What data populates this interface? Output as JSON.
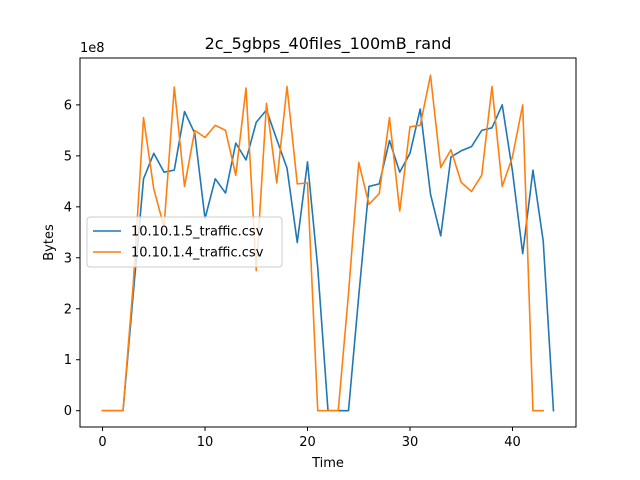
{
  "chart_data": {
    "type": "line",
    "title": "2c_5gbps_40files_100mB_rand",
    "xlabel": "Time",
    "ylabel": "Bytes",
    "y_offset_label": "1e8",
    "xlim": [
      -2.2,
      46.2
    ],
    "ylim": [
      -0.32,
      6.92
    ],
    "y_unit_scale": 100000000,
    "xticks": [
      0,
      10,
      20,
      30,
      40
    ],
    "yticks": [
      0,
      1,
      2,
      3,
      4,
      5,
      6
    ],
    "grid": false,
    "legend": "center-left",
    "series": [
      {
        "name": "10.10.1.5_traffic.csv",
        "color": "#1f77b4",
        "x": [
          0,
          1,
          2,
          3,
          4,
          5,
          6,
          7,
          8,
          9,
          10,
          11,
          12,
          13,
          14,
          15,
          16,
          17,
          18,
          19,
          20,
          21,
          22,
          23,
          24,
          25,
          26,
          27,
          28,
          29,
          30,
          31,
          32,
          33,
          34,
          35,
          36,
          37,
          38,
          39,
          40,
          41,
          42,
          43,
          44
        ],
        "values": [
          0,
          0,
          0,
          2.3,
          4.55,
          5.05,
          4.68,
          4.72,
          5.87,
          5.44,
          3.77,
          4.55,
          4.27,
          5.25,
          4.92,
          5.66,
          5.9,
          5.32,
          4.76,
          3.3,
          4.88,
          2.8,
          0,
          0,
          0,
          2.25,
          4.4,
          4.45,
          5.3,
          4.68,
          5.05,
          5.92,
          4.25,
          3.43,
          4.98,
          5.1,
          5.18,
          5.5,
          5.55,
          6.0,
          4.7,
          3.08,
          4.72,
          3.33,
          0
        ]
      },
      {
        "name": "10.10.1.4_traffic.csv",
        "color": "#ff7f0e",
        "x": [
          0,
          1,
          2,
          3,
          4,
          5,
          6,
          7,
          8,
          9,
          10,
          11,
          12,
          13,
          14,
          15,
          16,
          17,
          18,
          19,
          20,
          21,
          22,
          23,
          24,
          25,
          26,
          27,
          28,
          29,
          30,
          31,
          32,
          33,
          34,
          35,
          36,
          37,
          38,
          39,
          40,
          41,
          42,
          43
        ],
        "values": [
          0,
          0,
          0,
          2.5,
          5.75,
          4.35,
          3.6,
          6.35,
          4.4,
          5.5,
          5.36,
          5.6,
          5.5,
          4.62,
          6.33,
          2.75,
          6.03,
          4.47,
          6.36,
          4.45,
          4.47,
          0,
          0,
          0,
          2.3,
          4.87,
          4.05,
          4.26,
          5.75,
          3.92,
          5.57,
          5.6,
          6.58,
          4.77,
          5.12,
          4.48,
          4.3,
          4.62,
          6.36,
          4.4,
          4.98,
          6.0,
          0,
          0
        ]
      }
    ]
  }
}
